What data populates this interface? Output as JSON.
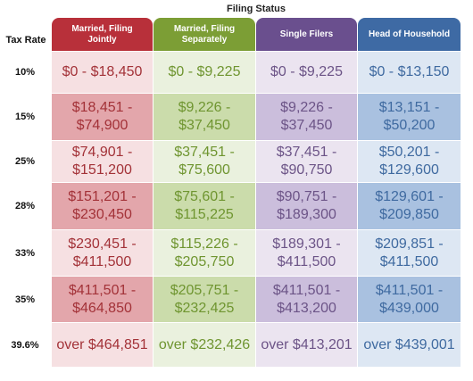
{
  "header": {
    "filing_status": "Filing Status",
    "tax_rate": "Tax Rate"
  },
  "columns": [
    {
      "label": "Married, Filing\nJointly",
      "color": "#b8303a"
    },
    {
      "label": "Married, Filing\nSeparately",
      "color": "#7c9e35"
    },
    {
      "label": "Single Filers",
      "color": "#6a4f8e"
    },
    {
      "label": "Head of Household",
      "color": "#3e6aa4"
    }
  ],
  "rows": [
    {
      "rate": "10%",
      "cells": [
        "$0 - $18,450",
        "$0 - $9,225",
        "$0 - $9,225",
        "$0 - $13,150"
      ]
    },
    {
      "rate": "15%",
      "cells": [
        "$18,451 -\n$74,900",
        "$9,226 -\n$37,450",
        "$9,226 -\n$37,450",
        "$13,151 -\n$50,200"
      ]
    },
    {
      "rate": "25%",
      "cells": [
        "$74,901 -\n$151,200",
        "$37,451 -\n$75,600",
        "$37,451 -\n$90,750",
        "$50,201 -\n$129,600"
      ]
    },
    {
      "rate": "28%",
      "cells": [
        "$151,201 -\n$230,450",
        "$75,601 -\n$115,225",
        "$90,751 -\n$189,300",
        "$129,601 -\n$209,850"
      ]
    },
    {
      "rate": "33%",
      "cells": [
        "$230,451 -\n$411,500",
        "$115,226 -\n$205,750",
        "$189,301 -\n$411,500",
        "$209,851 -\n$411,500"
      ]
    },
    {
      "rate": "35%",
      "cells": [
        "$411,501 -\n$464,850",
        "$205,751 -\n$232,425",
        "$411,501 -\n$413,200",
        "$411,501 -\n$439,000"
      ]
    },
    {
      "rate": "39.6%",
      "cells": [
        "over $464,851",
        "over $232,426",
        "over $413,201",
        "over $439,001"
      ]
    }
  ],
  "palette": {
    "light_bg": [
      "#f6e0e2",
      "#eaf1de",
      "#ebe4f0",
      "#dde7f3"
    ],
    "dark_bg": [
      "#e3a6ab",
      "#cbdcab",
      "#cbbedc",
      "#a9c1e0"
    ],
    "text": [
      "#a33238",
      "#6f9530",
      "#6c5487",
      "#3f6aa0"
    ]
  }
}
